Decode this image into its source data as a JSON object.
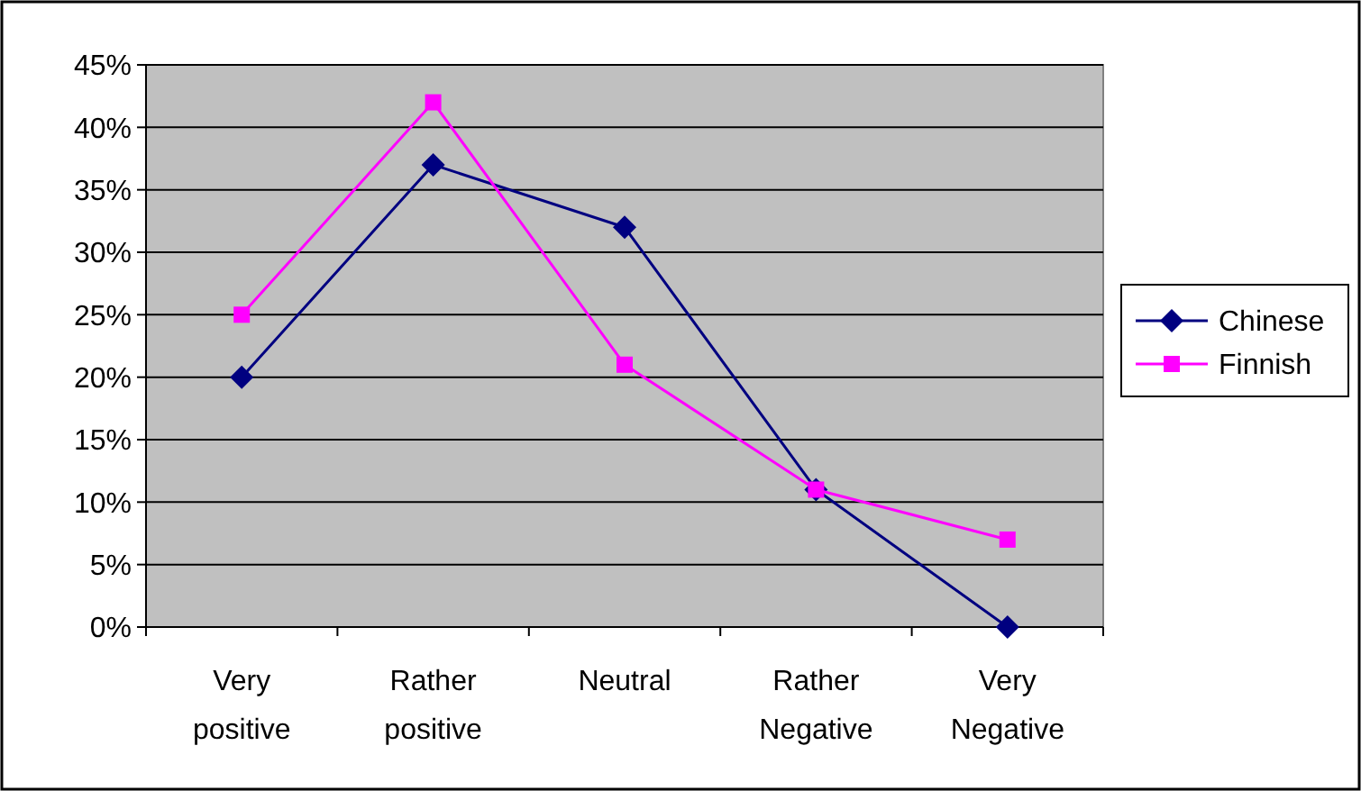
{
  "chart_data": {
    "type": "line",
    "categories": [
      "Very positive",
      "Rather positive",
      "Neutral",
      "Rather Negative",
      "Very Negative"
    ],
    "series": [
      {
        "name": "Chinese",
        "color": "#000080",
        "marker": "diamond",
        "values": [
          20,
          37,
          32,
          11,
          0
        ]
      },
      {
        "name": "Finnish",
        "color": "#ff00ff",
        "marker": "square",
        "values": [
          25,
          42,
          21,
          11,
          7
        ]
      }
    ],
    "ylim": [
      0,
      45
    ],
    "yticks": [
      {
        "value": 0,
        "label": "0%"
      },
      {
        "value": 5,
        "label": "5%"
      },
      {
        "value": 10,
        "label": "10%"
      },
      {
        "value": 15,
        "label": "15%"
      },
      {
        "value": 20,
        "label": "20%"
      },
      {
        "value": 25,
        "label": "25%"
      },
      {
        "value": 30,
        "label": "30%"
      },
      {
        "value": 35,
        "label": "35%"
      },
      {
        "value": 40,
        "label": "40%"
      },
      {
        "value": 45,
        "label": "45%"
      }
    ],
    "grid": "y",
    "legend": "right",
    "line_style": "solid"
  }
}
